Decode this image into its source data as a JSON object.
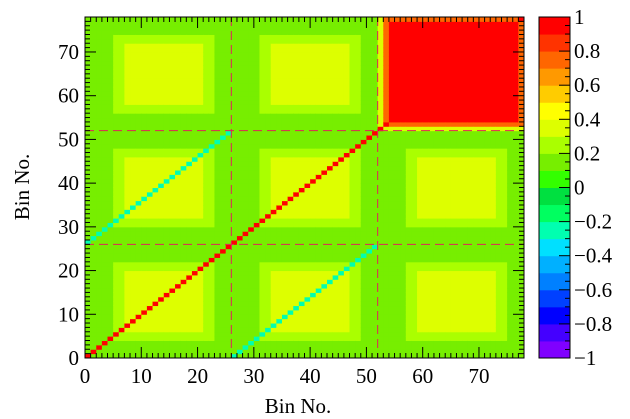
{
  "chart_data": {
    "type": "heatmap",
    "title": "",
    "xlabel": "Bin No.",
    "ylabel": "Bin No.",
    "nbins": 78,
    "xlim": [
      0,
      78
    ],
    "ylim": [
      0,
      78
    ],
    "zlim": [
      -1,
      1
    ],
    "x_ticks": [
      0,
      10,
      20,
      30,
      40,
      50,
      60,
      70
    ],
    "y_ticks": [
      0,
      10,
      20,
      30,
      40,
      50,
      60,
      70
    ],
    "x_tick_labels": [
      "0",
      "10",
      "20",
      "30",
      "40",
      "50",
      "60",
      "70"
    ],
    "y_tick_labels": [
      "0",
      "10",
      "20",
      "30",
      "40",
      "50",
      "60",
      "70"
    ],
    "colorbar": {
      "ticks": [
        1,
        0.8,
        0.6,
        0.4,
        0.2,
        0,
        -0.2,
        -0.4,
        -0.6,
        -0.8,
        -1
      ],
      "tick_labels": [
        "1",
        "0.8",
        "0.6",
        "0.4",
        "0.2",
        "0",
        "−0.2",
        "−0.4",
        "−0.6",
        "−0.8",
        "−1"
      ],
      "colors": [
        "#8000ff",
        "#4400ff",
        "#0000ff",
        "#0040ff",
        "#0080ff",
        "#00b0ff",
        "#00e0ff",
        "#00ffb0",
        "#00ff60",
        "#00e040",
        "#33ff00",
        "#77ee00",
        "#aaff00",
        "#ddff00",
        "#ffff00",
        "#ffcc00",
        "#ff9900",
        "#ff6600",
        "#ff3300",
        "#ff0000"
      ]
    },
    "block_boundaries": [
      26,
      52
    ],
    "diagonal_value": 1.0,
    "cross_block_diagonal_value": -0.3,
    "block_values": {
      "default_background": 0.1,
      "plateau_inner": 0.33,
      "plateau_outer": 0.24,
      "corner_block_center": 0.9,
      "corner_block_edge": 0.7
    },
    "grid": false,
    "legend": "colorbar-right"
  }
}
